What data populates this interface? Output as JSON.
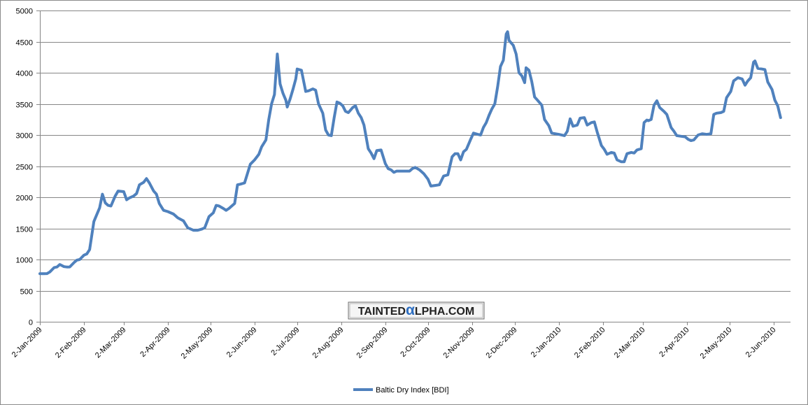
{
  "chart_data": {
    "type": "line",
    "title": "",
    "xlabel": "",
    "ylabel": "",
    "ylim": [
      0,
      5000
    ],
    "yticks": [
      0,
      500,
      1000,
      1500,
      2000,
      2500,
      3000,
      3500,
      4000,
      4500,
      5000
    ],
    "xlim": [
      "2009-01-02",
      "2010-06-14"
    ],
    "xtick_labels": [
      "2-Jan-2009",
      "2-Feb-2009",
      "2-Mar-2009",
      "2-Apr-2009",
      "2-May-2009",
      "2-Jun-2009",
      "2-Jul-2009",
      "2-Aug-2009",
      "2-Sep-2009",
      "2-Oct-2009",
      "2-Nov-2009",
      "2-Dec-2009",
      "2-Jan-2010",
      "2-Feb-2010",
      "2-Mar-2010",
      "2-Apr-2010",
      "2-May-2010",
      "2-Jun-2010"
    ],
    "xtick_dates": [
      "2009-01-02",
      "2009-02-02",
      "2009-03-02",
      "2009-04-02",
      "2009-05-02",
      "2009-06-02",
      "2009-07-02",
      "2009-08-02",
      "2009-09-02",
      "2009-10-02",
      "2009-11-02",
      "2009-12-02",
      "2010-01-02",
      "2010-02-02",
      "2010-03-02",
      "2010-04-02",
      "2010-05-02",
      "2010-06-02"
    ],
    "grid": true,
    "legend_position": "bottom",
    "line_color": "#4f81bd",
    "watermark": "TaintedAlpha.com",
    "series": [
      {
        "name": "Baltic Dry Index [BDI]",
        "points": [
          [
            "2009-01-02",
            773
          ],
          [
            "2009-01-05",
            773
          ],
          [
            "2009-01-07",
            774
          ],
          [
            "2009-01-09",
            800
          ],
          [
            "2009-01-12",
            870
          ],
          [
            "2009-01-14",
            880
          ],
          [
            "2009-01-16",
            920
          ],
          [
            "2009-01-19",
            885
          ],
          [
            "2009-01-21",
            880
          ],
          [
            "2009-01-23",
            881
          ],
          [
            "2009-01-26",
            950
          ],
          [
            "2009-01-28",
            990
          ],
          [
            "2009-01-30",
            1000
          ],
          [
            "2009-02-02",
            1070
          ],
          [
            "2009-02-04",
            1090
          ],
          [
            "2009-02-06",
            1160
          ],
          [
            "2009-02-09",
            1610
          ],
          [
            "2009-02-11",
            1720
          ],
          [
            "2009-02-13",
            1830
          ],
          [
            "2009-02-15",
            2050
          ],
          [
            "2009-02-17",
            1910
          ],
          [
            "2009-02-19",
            1870
          ],
          [
            "2009-02-21",
            1860
          ],
          [
            "2009-02-24",
            2020
          ],
          [
            "2009-02-26",
            2100
          ],
          [
            "2009-03-02",
            2090
          ],
          [
            "2009-03-04",
            1960
          ],
          [
            "2009-03-06",
            1990
          ],
          [
            "2009-03-09",
            2020
          ],
          [
            "2009-03-11",
            2060
          ],
          [
            "2009-03-13",
            2200
          ],
          [
            "2009-03-16",
            2240
          ],
          [
            "2009-03-18",
            2300
          ],
          [
            "2009-03-20",
            2230
          ],
          [
            "2009-03-23",
            2100
          ],
          [
            "2009-03-25",
            2050
          ],
          [
            "2009-03-27",
            1900
          ],
          [
            "2009-03-30",
            1790
          ],
          [
            "2009-04-02",
            1770
          ],
          [
            "2009-04-06",
            1730
          ],
          [
            "2009-04-09",
            1670
          ],
          [
            "2009-04-13",
            1620
          ],
          [
            "2009-04-16",
            1510
          ],
          [
            "2009-04-20",
            1470
          ],
          [
            "2009-04-23",
            1470
          ],
          [
            "2009-04-26",
            1490
          ],
          [
            "2009-04-28",
            1510
          ],
          [
            "2009-05-01",
            1690
          ],
          [
            "2009-05-04",
            1750
          ],
          [
            "2009-05-06",
            1870
          ],
          [
            "2009-05-08",
            1860
          ],
          [
            "2009-05-11",
            1820
          ],
          [
            "2009-05-13",
            1790
          ],
          [
            "2009-05-15",
            1820
          ],
          [
            "2009-05-19",
            1900
          ],
          [
            "2009-05-21",
            2200
          ],
          [
            "2009-05-23",
            2210
          ],
          [
            "2009-05-26",
            2230
          ],
          [
            "2009-05-28",
            2380
          ],
          [
            "2009-05-30",
            2530
          ],
          [
            "2009-06-02",
            2600
          ],
          [
            "2009-06-05",
            2690
          ],
          [
            "2009-06-07",
            2810
          ],
          [
            "2009-06-10",
            2920
          ],
          [
            "2009-06-12",
            3250
          ],
          [
            "2009-06-14",
            3500
          ],
          [
            "2009-06-16",
            3650
          ],
          [
            "2009-06-18",
            4300
          ],
          [
            "2009-06-20",
            3820
          ],
          [
            "2009-06-22",
            3670
          ],
          [
            "2009-06-24",
            3560
          ],
          [
            "2009-06-25",
            3450
          ],
          [
            "2009-06-27",
            3580
          ],
          [
            "2009-06-29",
            3730
          ],
          [
            "2009-07-01",
            3900
          ],
          [
            "2009-07-02",
            4060
          ],
          [
            "2009-07-05",
            4040
          ],
          [
            "2009-07-08",
            3700
          ],
          [
            "2009-07-10",
            3710
          ],
          [
            "2009-07-13",
            3740
          ],
          [
            "2009-07-15",
            3720
          ],
          [
            "2009-07-17",
            3500
          ],
          [
            "2009-07-20",
            3350
          ],
          [
            "2009-07-22",
            3080
          ],
          [
            "2009-07-24",
            3000
          ],
          [
            "2009-07-26",
            2990
          ],
          [
            "2009-07-28",
            3280
          ],
          [
            "2009-07-30",
            3530
          ],
          [
            "2009-08-01",
            3510
          ],
          [
            "2009-08-03",
            3470
          ],
          [
            "2009-08-05",
            3380
          ],
          [
            "2009-08-07",
            3360
          ],
          [
            "2009-08-10",
            3440
          ],
          [
            "2009-08-12",
            3470
          ],
          [
            "2009-08-14",
            3350
          ],
          [
            "2009-08-16",
            3280
          ],
          [
            "2009-08-18",
            3160
          ],
          [
            "2009-08-21",
            2780
          ],
          [
            "2009-08-23",
            2710
          ],
          [
            "2009-08-25",
            2620
          ],
          [
            "2009-08-27",
            2750
          ],
          [
            "2009-08-30",
            2760
          ],
          [
            "2009-09-02",
            2540
          ],
          [
            "2009-09-04",
            2460
          ],
          [
            "2009-09-06",
            2440
          ],
          [
            "2009-09-08",
            2400
          ],
          [
            "2009-09-10",
            2420
          ],
          [
            "2009-09-13",
            2420
          ],
          [
            "2009-09-16",
            2420
          ],
          [
            "2009-09-19",
            2420
          ],
          [
            "2009-09-21",
            2460
          ],
          [
            "2009-09-23",
            2480
          ],
          [
            "2009-09-26",
            2440
          ],
          [
            "2009-09-29",
            2380
          ],
          [
            "2009-10-02",
            2290
          ],
          [
            "2009-10-04",
            2180
          ],
          [
            "2009-10-07",
            2190
          ],
          [
            "2009-10-10",
            2200
          ],
          [
            "2009-10-13",
            2340
          ],
          [
            "2009-10-16",
            2360
          ],
          [
            "2009-10-19",
            2650
          ],
          [
            "2009-10-21",
            2700
          ],
          [
            "2009-10-23",
            2700
          ],
          [
            "2009-10-25",
            2600
          ],
          [
            "2009-10-27",
            2730
          ],
          [
            "2009-10-29",
            2770
          ],
          [
            "2009-11-01",
            2930
          ],
          [
            "2009-11-03",
            3030
          ],
          [
            "2009-11-06",
            3010
          ],
          [
            "2009-11-08",
            3000
          ],
          [
            "2009-11-10",
            3120
          ],
          [
            "2009-11-12",
            3200
          ],
          [
            "2009-11-14",
            3320
          ],
          [
            "2009-11-16",
            3420
          ],
          [
            "2009-11-18",
            3500
          ],
          [
            "2009-11-20",
            3780
          ],
          [
            "2009-11-22",
            4100
          ],
          [
            "2009-11-24",
            4200
          ],
          [
            "2009-11-26",
            4620
          ],
          [
            "2009-11-27",
            4660
          ],
          [
            "2009-11-28",
            4520
          ],
          [
            "2009-12-01",
            4440
          ],
          [
            "2009-12-03",
            4300
          ],
          [
            "2009-12-05",
            4000
          ],
          [
            "2009-12-07",
            3950
          ],
          [
            "2009-12-09",
            3840
          ],
          [
            "2009-12-10",
            4080
          ],
          [
            "2009-12-12",
            4040
          ],
          [
            "2009-12-14",
            3860
          ],
          [
            "2009-12-16",
            3610
          ],
          [
            "2009-12-18",
            3560
          ],
          [
            "2009-12-21",
            3480
          ],
          [
            "2009-12-23",
            3250
          ],
          [
            "2009-12-26",
            3150
          ],
          [
            "2009-12-28",
            3030
          ],
          [
            "2010-01-02",
            3010
          ],
          [
            "2010-01-06",
            2990
          ],
          [
            "2010-01-08",
            3060
          ],
          [
            "2010-01-10",
            3260
          ],
          [
            "2010-01-12",
            3140
          ],
          [
            "2010-01-15",
            3160
          ],
          [
            "2010-01-17",
            3270
          ],
          [
            "2010-01-20",
            3280
          ],
          [
            "2010-01-22",
            3160
          ],
          [
            "2010-01-25",
            3200
          ],
          [
            "2010-01-27",
            3210
          ],
          [
            "2010-01-29",
            3050
          ],
          [
            "2010-02-01",
            2830
          ],
          [
            "2010-02-03",
            2770
          ],
          [
            "2010-02-05",
            2690
          ],
          [
            "2010-02-08",
            2720
          ],
          [
            "2010-02-10",
            2710
          ],
          [
            "2010-02-12",
            2600
          ],
          [
            "2010-02-15",
            2570
          ],
          [
            "2010-02-17",
            2570
          ],
          [
            "2010-02-19",
            2700
          ],
          [
            "2010-02-22",
            2720
          ],
          [
            "2010-02-24",
            2710
          ],
          [
            "2010-02-26",
            2760
          ],
          [
            "2010-03-01",
            2780
          ],
          [
            "2010-03-03",
            3200
          ],
          [
            "2010-03-05",
            3240
          ],
          [
            "2010-03-06",
            3230
          ],
          [
            "2010-03-08",
            3250
          ],
          [
            "2010-03-10",
            3480
          ],
          [
            "2010-03-12",
            3550
          ],
          [
            "2010-03-14",
            3440
          ],
          [
            "2010-03-17",
            3380
          ],
          [
            "2010-03-19",
            3330
          ],
          [
            "2010-03-22",
            3120
          ],
          [
            "2010-03-24",
            3060
          ],
          [
            "2010-03-26",
            2990
          ],
          [
            "2010-03-29",
            2980
          ],
          [
            "2010-04-01",
            2970
          ],
          [
            "2010-04-03",
            2930
          ],
          [
            "2010-04-05",
            2910
          ],
          [
            "2010-04-07",
            2920
          ],
          [
            "2010-04-10",
            3000
          ],
          [
            "2010-04-13",
            3020
          ],
          [
            "2010-04-16",
            3010
          ],
          [
            "2010-04-19",
            3020
          ],
          [
            "2010-04-21",
            3330
          ],
          [
            "2010-04-23",
            3350
          ],
          [
            "2010-04-26",
            3360
          ],
          [
            "2010-04-28",
            3380
          ],
          [
            "2010-04-30",
            3600
          ],
          [
            "2010-05-03",
            3700
          ],
          [
            "2010-05-05",
            3870
          ],
          [
            "2010-05-08",
            3920
          ],
          [
            "2010-05-11",
            3900
          ],
          [
            "2010-05-13",
            3800
          ],
          [
            "2010-05-15",
            3870
          ],
          [
            "2010-05-17",
            3920
          ],
          [
            "2010-05-19",
            4170
          ],
          [
            "2010-05-20",
            4190
          ],
          [
            "2010-05-22",
            4070
          ],
          [
            "2010-05-25",
            4060
          ],
          [
            "2010-05-27",
            4050
          ],
          [
            "2010-05-29",
            3850
          ],
          [
            "2010-06-01",
            3730
          ],
          [
            "2010-06-03",
            3560
          ],
          [
            "2010-06-05",
            3470
          ],
          [
            "2010-06-07",
            3280
          ]
        ]
      }
    ]
  }
}
